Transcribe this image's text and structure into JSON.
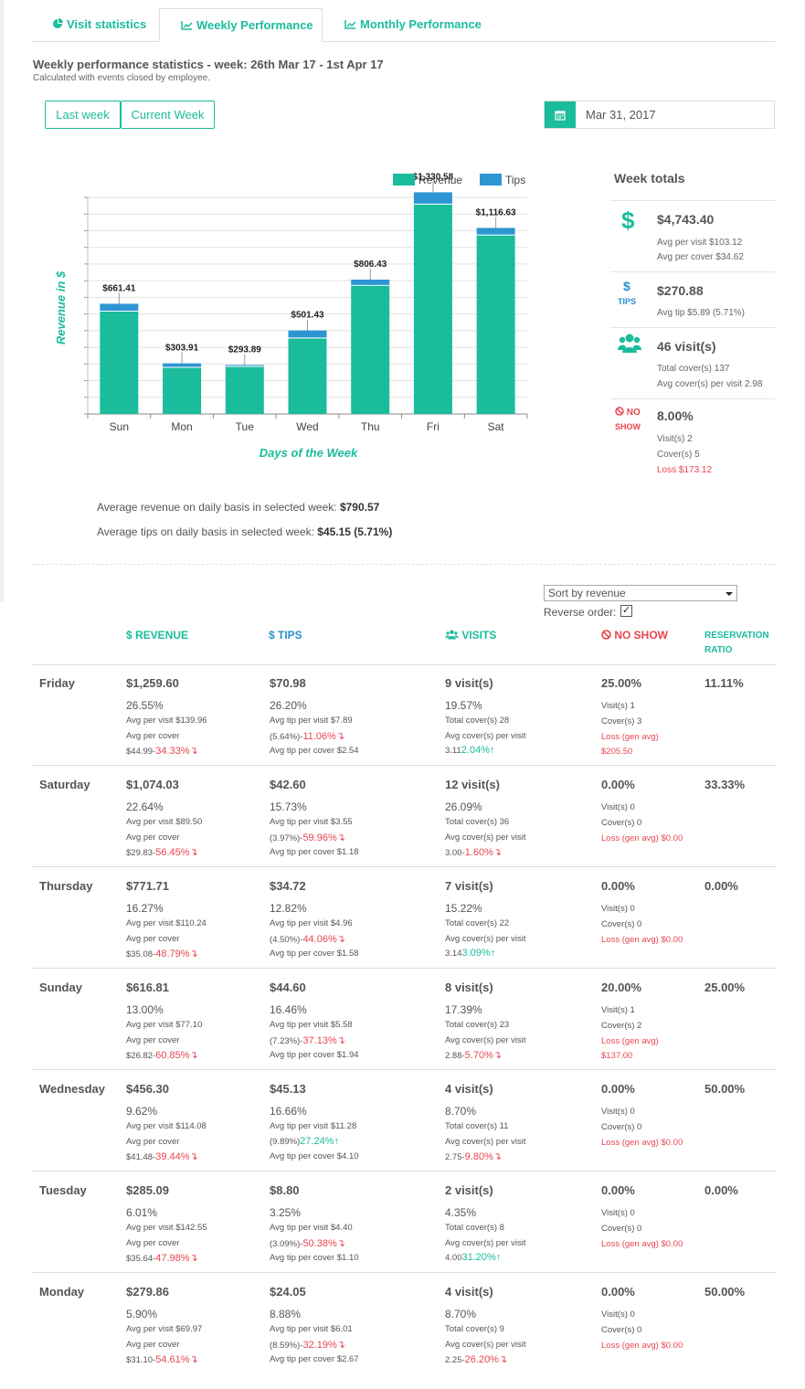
{
  "tabs": [
    {
      "label": "Visit statistics",
      "icon": "pie-chart-icon"
    },
    {
      "label": "Weekly Performance",
      "icon": "line-chart-icon"
    },
    {
      "label": "Monthly Performance",
      "icon": "line-chart-icon"
    }
  ],
  "header": {
    "title": "Weekly performance statistics - week: 26th Mar 17 - 1st Apr 17",
    "subtitle": "Calculated with events closed by employee."
  },
  "buttons": {
    "last_week": "Last week",
    "current_week": "Current Week"
  },
  "date_picker": {
    "value": "Mar 31, 2017",
    "icon": "calendar-icon"
  },
  "colors": {
    "revenue": "#1abc9c",
    "tips": "#2e95d3",
    "red": "#e8454f"
  },
  "chart_data": {
    "type": "bar",
    "stacked": true,
    "categories": [
      "Sun",
      "Mon",
      "Tue",
      "Wed",
      "Thu",
      "Fri",
      "Sat"
    ],
    "series": [
      {
        "name": "Revenue",
        "values": [
          616.81,
          279.86,
          285.09,
          456.3,
          771.71,
          1259.6,
          1074.03
        ]
      },
      {
        "name": "Tips",
        "values": [
          44.6,
          24.05,
          8.8,
          45.13,
          34.72,
          70.98,
          42.6
        ]
      }
    ],
    "totals_labels": [
      "$661.41",
      "$303.91",
      "$293.89",
      "$501.43",
      "$806.43",
      "$1,330.58",
      "$1,116.63"
    ],
    "xlabel": "Days of the Week",
    "ylabel": "Revenue in $",
    "ylim": [
      0,
      1400
    ],
    "grid": true,
    "legend": "top-right"
  },
  "week_totals": {
    "title": "Week totals",
    "revenue": {
      "value": "$4,743.40",
      "avg_visit": "Avg per visit $103.12",
      "avg_cover": "Avg per cover $34.62",
      "icon": "dollar-icon"
    },
    "tips": {
      "value": "$270.88",
      "avg_tip": "Avg tip $5.89 (5.71%)",
      "icon_label": "TIPS",
      "icon": "dollar-icon"
    },
    "visits": {
      "value": "46 visit(s)",
      "total_covers": "Total cover(s) 137",
      "avg_covers": "Avg cover(s) per visit 2.98",
      "icon": "users-icon"
    },
    "noshow": {
      "value": "8.00%",
      "label_1": "NO",
      "label_2": "SHOW",
      "visits": "Visit(s) 2",
      "covers": "Cover(s) 5",
      "loss": "Loss $173.12",
      "icon": "ban-icon"
    }
  },
  "averages": {
    "revenue_label": "Average revenue on daily basis in selected week:",
    "revenue_value": "$790.57",
    "tips_label": "Average tips on daily basis in selected week:",
    "tips_value": "$45.15 (5.71%)"
  },
  "sort": {
    "selected": "Sort by revenue",
    "reverse_label": "Reverse order:",
    "reverse_checked": true
  },
  "table": {
    "headers": {
      "revenue": "$ REVENUE",
      "tips": "$ TIPS",
      "visits": "VISITS",
      "noshow": "NO SHOW",
      "reservation_1": "RESERVATION",
      "reservation_2": "RATIO"
    },
    "rows": [
      {
        "day": "Friday",
        "revenue": "$1,259.60",
        "rev_pct": "26.55%",
        "avg_visit": "Avg per visit $139.96",
        "avg_cover_label": "Avg per cover",
        "avg_cover": "$44.99-",
        "avg_cover_delta": "34.33%",
        "avg_cover_dir": "down",
        "tips": "$70.98",
        "tips_pct": "26.20%",
        "avg_tip_visit": "Avg tip per visit $7.89",
        "tip_ratio": "(5.64%)-",
        "tip_delta": "11.06%",
        "tip_dir": "down",
        "avg_tip_cover": "Avg tip per cover $2.54",
        "visits": "9 visit(s)",
        "visits_pct": "19.57%",
        "total_covers": "Total cover(s) 28",
        "avg_covers_label": "Avg cover(s) per visit",
        "avg_covers": "3.11",
        "covers_delta": "2.04%",
        "covers_dir": "up",
        "noshow": "25.00%",
        "ns_visits": "Visit(s) 1",
        "ns_covers": "Cover(s) 3",
        "ns_loss_1": "Loss (gen avg)",
        "ns_loss_2": "$205.50",
        "reservation": "11.11%"
      },
      {
        "day": "Saturday",
        "revenue": "$1,074.03",
        "rev_pct": "22.64%",
        "avg_visit": "Avg per visit $89.50",
        "avg_cover_label": "Avg per cover",
        "avg_cover": "$29.83-",
        "avg_cover_delta": "56.45%",
        "avg_cover_dir": "down",
        "tips": "$42.60",
        "tips_pct": "15.73%",
        "avg_tip_visit": "Avg tip per visit $3.55",
        "tip_ratio": "(3.97%)-",
        "tip_delta": "59.96%",
        "tip_dir": "down",
        "avg_tip_cover": "Avg tip per cover $1.18",
        "visits": "12 visit(s)",
        "visits_pct": "26.09%",
        "total_covers": "Total cover(s) 36",
        "avg_covers_label": "Avg cover(s) per visit",
        "avg_covers": "3.00-",
        "covers_delta": "1.60%",
        "covers_dir": "down",
        "noshow": "0.00%",
        "ns_visits": "Visit(s) 0",
        "ns_covers": "Cover(s) 0",
        "ns_loss_1": "Loss (gen avg) $0.00",
        "ns_loss_2": "",
        "reservation": "33.33%"
      },
      {
        "day": "Thursday",
        "revenue": "$771.71",
        "rev_pct": "16.27%",
        "avg_visit": "Avg per visit $110.24",
        "avg_cover_label": "Avg per cover",
        "avg_cover": "$35.08-",
        "avg_cover_delta": "48.79%",
        "avg_cover_dir": "down",
        "tips": "$34.72",
        "tips_pct": "12.82%",
        "avg_tip_visit": "Avg tip per visit $4.96",
        "tip_ratio": "(4.50%)-",
        "tip_delta": "44.06%",
        "tip_dir": "down",
        "avg_tip_cover": "Avg tip per cover $1.58",
        "visits": "7 visit(s)",
        "visits_pct": "15.22%",
        "total_covers": "Total cover(s) 22",
        "avg_covers_label": "Avg cover(s) per visit",
        "avg_covers": "3.14",
        "covers_delta": "3.09%",
        "covers_dir": "up",
        "noshow": "0.00%",
        "ns_visits": "Visit(s) 0",
        "ns_covers": "Cover(s) 0",
        "ns_loss_1": "Loss (gen avg) $0.00",
        "ns_loss_2": "",
        "reservation": "0.00%"
      },
      {
        "day": "Sunday",
        "revenue": "$616.81",
        "rev_pct": "13.00%",
        "avg_visit": "Avg per visit $77.10",
        "avg_cover_label": "Avg per cover",
        "avg_cover": "$26.82-",
        "avg_cover_delta": "60.85%",
        "avg_cover_dir": "down",
        "tips": "$44.60",
        "tips_pct": "16.46%",
        "avg_tip_visit": "Avg tip per visit $5.58",
        "tip_ratio": "(7.23%)-",
        "tip_delta": "37.13%",
        "tip_dir": "down",
        "avg_tip_cover": "Avg tip per cover $1.94",
        "visits": "8 visit(s)",
        "visits_pct": "17.39%",
        "total_covers": "Total cover(s) 23",
        "avg_covers_label": "Avg cover(s) per visit",
        "avg_covers": "2.88-",
        "covers_delta": "5.70%",
        "covers_dir": "down",
        "noshow": "20.00%",
        "ns_visits": "Visit(s) 1",
        "ns_covers": "Cover(s) 2",
        "ns_loss_1": "Loss (gen avg)",
        "ns_loss_2": "$137.00",
        "reservation": "25.00%"
      },
      {
        "day": "Wednesday",
        "revenue": "$456.30",
        "rev_pct": "9.62%",
        "avg_visit": "Avg per visit $114.08",
        "avg_cover_label": "Avg per cover",
        "avg_cover": "$41.48-",
        "avg_cover_delta": "39.44%",
        "avg_cover_dir": "down",
        "tips": "$45.13",
        "tips_pct": "16.66%",
        "avg_tip_visit": "Avg tip per visit $11.28",
        "tip_ratio": "(9.89%)",
        "tip_delta": "27.24%",
        "tip_dir": "up",
        "avg_tip_cover": "Avg tip per cover $4.10",
        "visits": "4 visit(s)",
        "visits_pct": "8.70%",
        "total_covers": "Total cover(s) 11",
        "avg_covers_label": "Avg cover(s) per visit",
        "avg_covers": "2.75-",
        "covers_delta": "9.80%",
        "covers_dir": "down",
        "noshow": "0.00%",
        "ns_visits": "Visit(s) 0",
        "ns_covers": "Cover(s) 0",
        "ns_loss_1": "Loss (gen avg) $0.00",
        "ns_loss_2": "",
        "reservation": "50.00%"
      },
      {
        "day": "Tuesday",
        "revenue": "$285.09",
        "rev_pct": "6.01%",
        "avg_visit": "Avg per visit $142.55",
        "avg_cover_label": "Avg per cover",
        "avg_cover": "$35.64-",
        "avg_cover_delta": "47.98%",
        "avg_cover_dir": "down",
        "tips": "$8.80",
        "tips_pct": "3.25%",
        "avg_tip_visit": "Avg tip per visit $4.40",
        "tip_ratio": "(3.09%)-",
        "tip_delta": "50.38%",
        "tip_dir": "down",
        "avg_tip_cover": "Avg tip per cover $1.10",
        "visits": "2 visit(s)",
        "visits_pct": "4.35%",
        "total_covers": "Total cover(s) 8",
        "avg_covers_label": "Avg cover(s) per visit",
        "avg_covers": "4.00",
        "covers_delta": "31.20%",
        "covers_dir": "up",
        "noshow": "0.00%",
        "ns_visits": "Visit(s) 0",
        "ns_covers": "Cover(s) 0",
        "ns_loss_1": "Loss (gen avg) $0.00",
        "ns_loss_2": "",
        "reservation": "0.00%"
      },
      {
        "day": "Monday",
        "revenue": "$279.86",
        "rev_pct": "5.90%",
        "avg_visit": "Avg per visit $69.97",
        "avg_cover_label": "Avg per cover",
        "avg_cover": "$31.10-",
        "avg_cover_delta": "54.61%",
        "avg_cover_dir": "down",
        "tips": "$24.05",
        "tips_pct": "8.88%",
        "avg_tip_visit": "Avg tip per visit $6.01",
        "tip_ratio": "(8.59%)-",
        "tip_delta": "32.19%",
        "tip_dir": "down",
        "avg_tip_cover": "Avg tip per cover $2.67",
        "visits": "4 visit(s)",
        "visits_pct": "8.70%",
        "total_covers": "Total cover(s) 9",
        "avg_covers_label": "Avg cover(s) per visit",
        "avg_covers": "2.25-",
        "covers_delta": "26.20%",
        "covers_dir": "down",
        "noshow": "0.00%",
        "ns_visits": "Visit(s) 0",
        "ns_covers": "Cover(s) 0",
        "ns_loss_1": "Loss (gen avg) $0.00",
        "ns_loss_2": "",
        "reservation": "50.00%"
      }
    ]
  }
}
